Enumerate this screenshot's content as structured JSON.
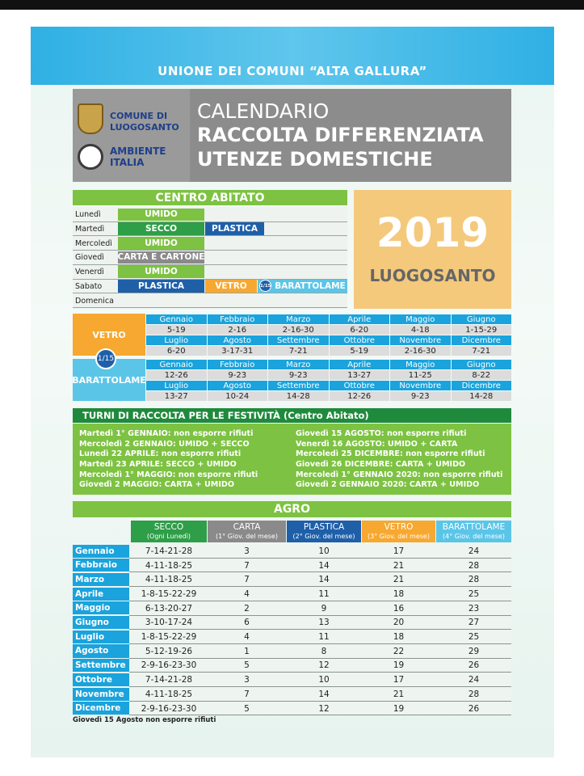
{
  "header": {
    "union": "UNIONE DEI COMUNI “ALTA GALLURA”",
    "logo_comune": [
      "COMUNE DI",
      "LUOGOSANTO"
    ],
    "logo_ambiente": [
      "AMBIENTE",
      "ITALIA"
    ],
    "title": [
      "CALENDARIO",
      "RACCOLTA DIFFERENZIATA",
      "UTENZE DOMESTICHE"
    ]
  },
  "centro_abitato": {
    "title": "CENTRO ABITATO",
    "rows": [
      {
        "day": "Lunedì",
        "items": [
          {
            "label": "UMIDO",
            "color": "#7dc242"
          }
        ]
      },
      {
        "day": "Martedì",
        "items": [
          {
            "label": "SECCO",
            "color": "#2e9e48"
          },
          {
            "label": "PLASTICA",
            "color": "#1e5fa8"
          }
        ]
      },
      {
        "day": "Mercoledì",
        "items": [
          {
            "label": "UMIDO",
            "color": "#7dc242"
          }
        ]
      },
      {
        "day": "Giovedì",
        "items": [
          {
            "label": "CARTA E CARTONE",
            "color": "#8a8a8a"
          }
        ]
      },
      {
        "day": "Venerdì",
        "items": [
          {
            "label": "UMIDO",
            "color": "#7dc242"
          }
        ]
      },
      {
        "day": "Sabato",
        "items": [
          {
            "label": "PLASTICA",
            "color": "#1e5fa8"
          },
          {
            "label": "VETRO",
            "color": "#f7a830"
          },
          {
            "label": "BARATTOLAME",
            "color": "#5bc5e8",
            "badge": "1/15"
          }
        ]
      },
      {
        "day": "Domenica",
        "items": []
      }
    ]
  },
  "year_box": {
    "year": "2019",
    "place": "LUOGOSANTO"
  },
  "schedule": {
    "badge": "1/15",
    "blocks": [
      {
        "label": "VETRO",
        "color": "#f7a830",
        "rows": [
          {
            "months": [
              "Gennaio",
              "Febbraio",
              "Marzo",
              "Aprile",
              "Maggio",
              "Giugno"
            ],
            "dates": [
              "5-19",
              "2-16",
              "2-16-30",
              "6-20",
              "4-18",
              "1-15-29"
            ]
          },
          {
            "months": [
              "Luglio",
              "Agosto",
              "Settembre",
              "Ottobre",
              "Novembre",
              "Dicembre"
            ],
            "dates": [
              "6-20",
              "3-17-31",
              "7-21",
              "5-19",
              "2-16-30",
              "7-21"
            ]
          }
        ]
      },
      {
        "label": "BARATTOLAME",
        "color": "#5bc5e8",
        "rows": [
          {
            "months": [
              "Gennaio",
              "Febbraio",
              "Marzo",
              "Aprile",
              "Maggio",
              "Giugno"
            ],
            "dates": [
              "12-26",
              "9-23",
              "9-23",
              "13-27",
              "11-25",
              "8-22"
            ]
          },
          {
            "months": [
              "Luglio",
              "Agosto",
              "Settembre",
              "Ottobre",
              "Novembre",
              "Dicembre"
            ],
            "dates": [
              "13-27",
              "10-24",
              "14-28",
              "12-26",
              "9-23",
              "14-28"
            ]
          }
        ]
      }
    ]
  },
  "turni": {
    "title": "TURNI DI RACCOLTA PER LE FESTIVITÀ (Centro Abitato)",
    "columns": [
      [
        "Martedì 1° GENNAIO: non esporre rifiuti",
        "Mercoledì 2 GENNAIO: UMIDO + SECCO",
        "Lunedì 22 APRILE: non esporre rifiuti",
        "Martedì 23 APRILE: SECCO + UMIDO",
        "Mercoledì 1° MAGGIO: non esporre rifiuti",
        "Giovedì 2 MAGGIO: CARTA + UMIDO"
      ],
      [
        "Giovedì 15 AGOSTO: non esporre rifiuti",
        "Venerdì 16 AGOSTO: UMIDO + CARTA",
        "Mercoledì 25 DICEMBRE: non esporre rifiuti",
        "Giovedì 26 DICEMBRE: CARTA + UMIDO",
        "Mercoledì 1° GENNAIO 2020: non esporre rifiuti",
        "Giovedì 2 GENNAIO 2020: CARTA + UMIDO"
      ]
    ]
  },
  "agro": {
    "title": "AGRO",
    "columns": [
      {
        "name": "SECCO",
        "note": "(Ogni Lunedì)",
        "color": "#2e9e48"
      },
      {
        "name": "CARTA",
        "note": "(1° Giov. del mese)",
        "color": "#8a8a8a"
      },
      {
        "name": "PLASTICA",
        "note": "(2° Giov. del mese)",
        "color": "#1e5fa8"
      },
      {
        "name": "VETRO",
        "note": "(3° Giov. del mese)",
        "color": "#f7a830"
      },
      {
        "name": "BARATTOLAME",
        "note": "(4° Giov. del mese)",
        "color": "#5bc5e8"
      }
    ],
    "rows": [
      {
        "month": "Gennaio",
        "values": [
          "7-14-21-28",
          3,
          10,
          17,
          24
        ]
      },
      {
        "month": "Febbraio",
        "values": [
          "4-11-18-25",
          7,
          14,
          21,
          28
        ]
      },
      {
        "month": "Marzo",
        "values": [
          "4-11-18-25",
          7,
          14,
          21,
          28
        ]
      },
      {
        "month": "Aprile",
        "values": [
          "1-8-15-22-29",
          4,
          11,
          18,
          25
        ]
      },
      {
        "month": "Maggio",
        "values": [
          "6-13-20-27",
          2,
          9,
          16,
          23
        ]
      },
      {
        "month": "Giugno",
        "values": [
          "3-10-17-24",
          6,
          13,
          20,
          27
        ]
      },
      {
        "month": "Luglio",
        "values": [
          "1-8-15-22-29",
          4,
          11,
          18,
          25
        ]
      },
      {
        "month": "Agosto",
        "values": [
          "5-12-19-26",
          1,
          8,
          22,
          29
        ]
      },
      {
        "month": "Settembre",
        "values": [
          "2-9-16-23-30",
          5,
          12,
          19,
          26
        ]
      },
      {
        "month": "Ottobre",
        "values": [
          "7-14-21-28",
          3,
          10,
          17,
          24
        ]
      },
      {
        "month": "Novembre",
        "values": [
          "4-11-18-25",
          7,
          14,
          21,
          28
        ]
      },
      {
        "month": "Dicembre",
        "values": [
          "2-9-16-23-30",
          5,
          12,
          19,
          26
        ]
      }
    ],
    "note": "Giovedì 15 Agosto non esporre rifiuti"
  }
}
